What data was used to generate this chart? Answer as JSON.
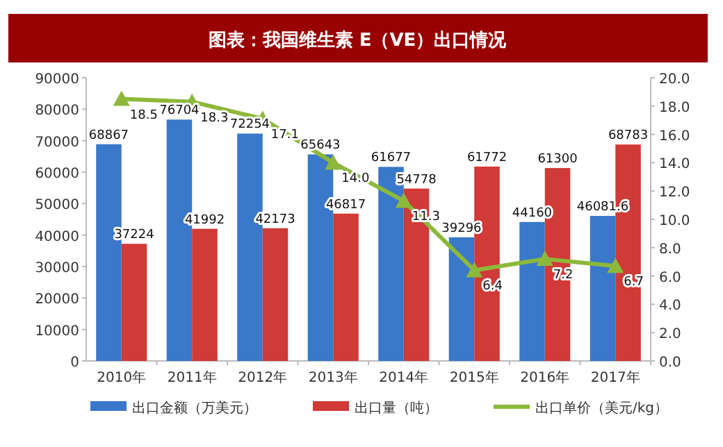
{
  "chart_data": {
    "type": "bar",
    "title": "图表：我国维生素 E（VE）出口情况",
    "categories": [
      "2010年",
      "2011年",
      "2012年",
      "2013年",
      "2014年",
      "2015年",
      "2016年",
      "2017年"
    ],
    "series": [
      {
        "name": "出口金额（万美元）",
        "color": "#3a78c9",
        "values": [
          68867,
          76704,
          72254,
          65643,
          61677,
          39296,
          44160,
          46081.6
        ]
      },
      {
        "name": "出口量（吨）",
        "color": "#d03a37",
        "values": [
          37224,
          41992,
          42173,
          46817,
          54778,
          61772,
          61300,
          68783
        ]
      },
      {
        "name": "出口单价（美元/kg）",
        "color": "#8db83b",
        "type": "line",
        "axis": "y2",
        "marker": "triangle",
        "values": [
          18.5,
          18.3,
          17.1,
          14.0,
          11.3,
          6.4,
          7.2,
          6.7
        ],
        "value_labels": [
          "18.5",
          "18.3",
          "17.1",
          "14.0",
          "11.3",
          "6.4",
          "7.2",
          "6.7"
        ]
      }
    ],
    "ylim": [
      0,
      90000
    ],
    "yticks": [
      0,
      10000,
      20000,
      30000,
      40000,
      50000,
      60000,
      70000,
      80000,
      90000
    ],
    "y2lim": [
      0,
      20
    ],
    "y2ticks": [
      {
        "value": 0,
        "label": "0.0"
      },
      {
        "value": 2,
        "label": "2.0"
      },
      {
        "value": 4,
        "label": "4.0"
      },
      {
        "value": 6,
        "label": "6.0"
      },
      {
        "value": 8,
        "label": "8.0"
      },
      {
        "value": 10,
        "label": "10.0"
      },
      {
        "value": 12,
        "label": "12.0"
      },
      {
        "value": 14,
        "label": "14.0"
      },
      {
        "value": 16,
        "label": "16.0"
      },
      {
        "value": 18,
        "label": "18.0"
      },
      {
        "value": 20,
        "label": "20.0"
      }
    ],
    "data_labels": true,
    "legend": "bottom",
    "grid": false
  }
}
